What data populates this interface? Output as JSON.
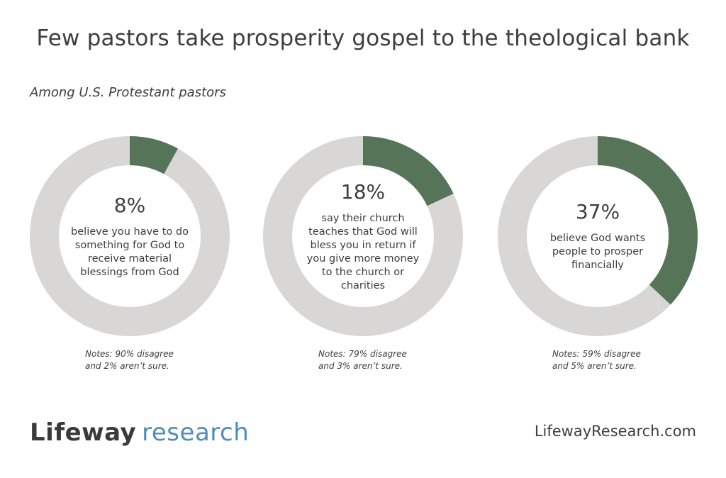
{
  "colors": {
    "accent": "#557458",
    "track": "#d9d6d6",
    "logo_research": "#4d8eb8"
  },
  "header": {
    "title": "Few pastors take prosperity gospel to the theological bank",
    "subtitle": "Among U.S. Protestant pastors"
  },
  "chart_data": [
    {
      "type": "pie",
      "value": 8,
      "label": "8%",
      "description": "believe you have to do something for God to receive material blessings from God",
      "note_line1": "Notes: 90% disagree",
      "note_line2": "and 2% aren’t sure."
    },
    {
      "type": "pie",
      "value": 18,
      "label": "18%",
      "description": "say their church teaches that God will bless you in return if you give more money to the church or charities",
      "note_line1": "Notes: 79% disagree",
      "note_line2": "and 3% aren’t sure."
    },
    {
      "type": "pie",
      "value": 37,
      "label": "37%",
      "description": "believe God wants people to prosper financially",
      "note_line1": "Notes: 59% disagree",
      "note_line2": "and 5% aren’t sure."
    }
  ],
  "footer": {
    "logo_brand": "Lifeway",
    "logo_word": "research",
    "url": "LifewayResearch.com"
  }
}
